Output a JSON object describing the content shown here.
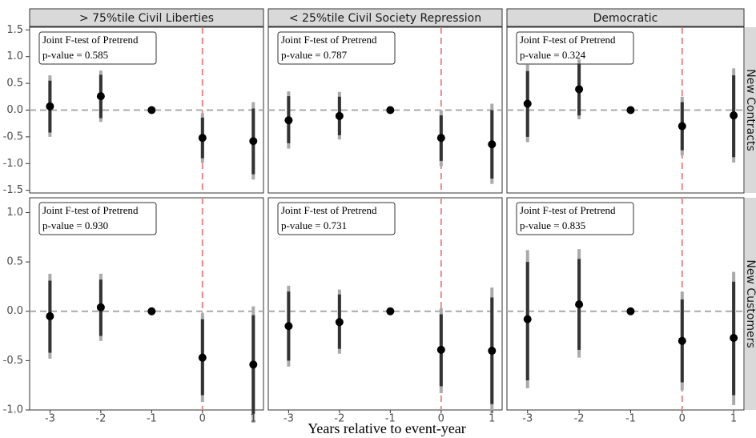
{
  "chart_data": {
    "type": "pointrange",
    "x_label": "Years relative to event-year",
    "x": [
      -3,
      -2,
      -1,
      0,
      1
    ],
    "xlim": [
      -3.4,
      1.2
    ],
    "xticks": [
      -3,
      -2,
      -1,
      0,
      1
    ],
    "columns": [
      "> 75%tile Civil Liberties",
      "< 25%tile Civil Society Repression",
      "Democratic"
    ],
    "hline": 0,
    "vline": 0,
    "point_color": "#000000",
    "ci90_color": "#333333",
    "ci95_color": "#aaaaaa",
    "hline_color": "#aaaaaa",
    "vline_color": "#e88a8a",
    "rows": [
      {
        "name": "New Contracts",
        "ylim": [
          -1.55,
          1.55
        ],
        "yticks": [
          -1.5,
          {
            "value": -1.0,
            "label": "-1.0"
          },
          -0.5,
          {
            "value": 0,
            "label": "0.0"
          },
          0.5,
          {
            "value": 1.0,
            "label": "1.0"
          },
          1.5
        ],
        "panels": [
          {
            "annotation": [
              "Joint F-test of Pretrend",
              "p-value = 0.585"
            ],
            "values": [
              0.07,
              0.26,
              0,
              -0.52,
              -0.58
            ],
            "lower90": [
              -0.42,
              -0.15,
              null,
              -0.9,
              -1.2
            ],
            "upper90": [
              0.55,
              0.66,
              null,
              -0.14,
              0.03
            ],
            "lower95": [
              -0.5,
              -0.22,
              null,
              -0.98,
              -1.3
            ],
            "upper95": [
              0.65,
              0.74,
              null,
              -0.06,
              0.15
            ]
          },
          {
            "annotation": [
              "Joint F-test of Pretrend",
              "p-value = 0.787"
            ],
            "values": [
              -0.19,
              -0.11,
              0,
              -0.52,
              -0.64
            ],
            "lower90": [
              -0.62,
              -0.47,
              null,
              -0.95,
              -1.28
            ],
            "upper90": [
              0.26,
              0.25,
              null,
              -0.1,
              0.0
            ],
            "lower95": [
              -0.72,
              -0.55,
              null,
              -1.05,
              -1.38
            ],
            "upper95": [
              0.35,
              0.34,
              null,
              0.0,
              0.12
            ]
          },
          {
            "annotation": [
              "Joint F-test of Pretrend",
              "p-value = 0.324"
            ],
            "values": [
              0.12,
              0.39,
              0,
              -0.3,
              -0.1
            ],
            "lower90": [
              -0.5,
              -0.1,
              null,
              -0.75,
              -0.88
            ],
            "upper90": [
              0.73,
              0.87,
              null,
              0.15,
              0.65
            ],
            "lower95": [
              -0.6,
              -0.17,
              null,
              -0.85,
              -0.98
            ],
            "upper95": [
              0.85,
              0.95,
              null,
              0.25,
              0.78
            ]
          }
        ]
      },
      {
        "name": "New Customers",
        "ylim": [
          -1.0,
          1.15
        ],
        "yticks": [
          {
            "value": -1.0,
            "label": "-1.0"
          },
          -0.5,
          {
            "value": 0,
            "label": "0.0"
          },
          0.5,
          {
            "value": 1.0,
            "label": "1.0"
          }
        ],
        "panels": [
          {
            "annotation": [
              "Joint F-test of Pretrend",
              "p-value = 0.930"
            ],
            "values": [
              -0.05,
              0.04,
              0,
              -0.47,
              -0.54
            ],
            "lower90": [
              -0.42,
              -0.25,
              null,
              -0.85,
              -1.04
            ],
            "upper90": [
              0.31,
              0.32,
              null,
              -0.08,
              -0.04
            ],
            "lower95": [
              -0.48,
              -0.3,
              null,
              -0.92,
              -1.13
            ],
            "upper95": [
              0.38,
              0.38,
              null,
              -0.02,
              0.05
            ]
          },
          {
            "annotation": [
              "Joint F-test of Pretrend",
              "p-value = 0.731"
            ],
            "values": [
              -0.15,
              -0.11,
              0,
              -0.39,
              -0.4
            ],
            "lower90": [
              -0.5,
              -0.38,
              null,
              -0.76,
              -0.94
            ],
            "upper90": [
              0.2,
              0.17,
              null,
              -0.03,
              0.14
            ],
            "lower95": [
              -0.56,
              -0.43,
              null,
              -0.83,
              -1.03
            ],
            "upper95": [
              0.26,
              0.22,
              null,
              0.03,
              0.24
            ]
          },
          {
            "annotation": [
              "Joint F-test of Pretrend",
              "p-value = 0.835"
            ],
            "values": [
              -0.08,
              0.07,
              0,
              -0.3,
              -0.27
            ],
            "lower90": [
              -0.7,
              -0.39,
              null,
              -0.72,
              -0.85
            ],
            "upper90": [
              0.5,
              0.53,
              null,
              0.12,
              0.3
            ],
            "lower95": [
              -0.78,
              -0.47,
              null,
              -0.8,
              -0.95
            ],
            "upper95": [
              0.62,
              0.63,
              null,
              0.2,
              0.4
            ]
          }
        ]
      }
    ]
  }
}
